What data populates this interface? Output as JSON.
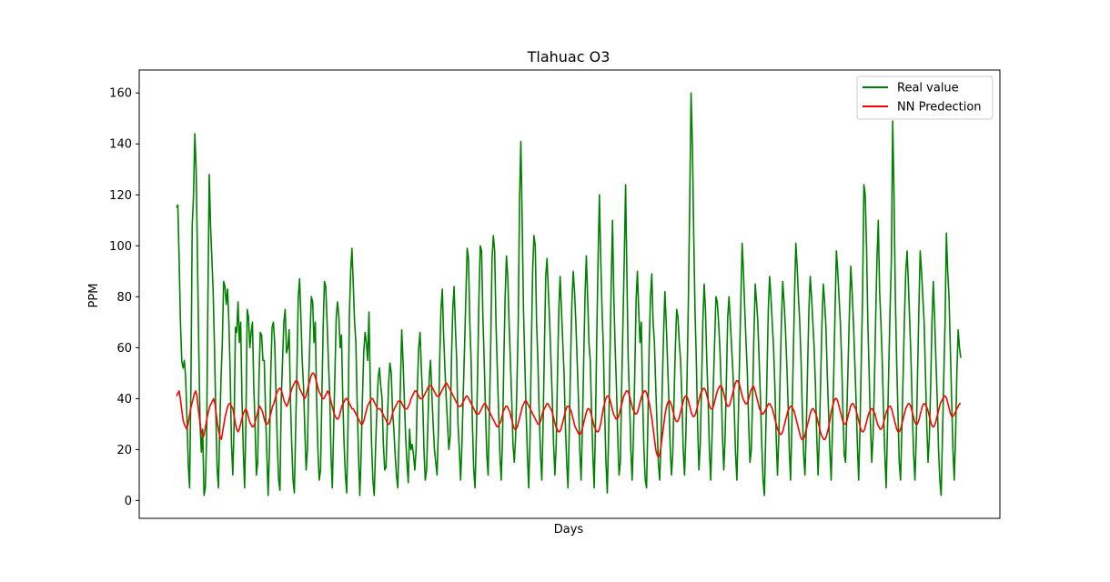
{
  "chart_data": {
    "type": "line",
    "title": "Tlahuac O3",
    "xlabel": "Days",
    "ylabel": "PPM",
    "ylim": [
      -7,
      169
    ],
    "yticks": [
      0,
      20,
      40,
      60,
      80,
      100,
      120,
      140,
      160
    ],
    "xticks": [],
    "grid": false,
    "legend": {
      "placement": "top-right",
      "entries": [
        "Real value",
        "NN Predection"
      ]
    },
    "series": [
      {
        "name": "Real value",
        "color": "#008000",
        "values": [
          115,
          116,
          95,
          70,
          55,
          52,
          55,
          48,
          32,
          14,
          5,
          45,
          108,
          120,
          144,
          130,
          95,
          60,
          30,
          19,
          28,
          2,
          5,
          25,
          80,
          128,
          108,
          95,
          82,
          60,
          35,
          13,
          5,
          28,
          48,
          62,
          86,
          84,
          77,
          83,
          70,
          50,
          22,
          10,
          30,
          68,
          66,
          78,
          62,
          70,
          40,
          20,
          5,
          30,
          75,
          72,
          60,
          66,
          70,
          45,
          30,
          10,
          15,
          48,
          66,
          65,
          55,
          55,
          35,
          18,
          2,
          20,
          50,
          68,
          70,
          62,
          42,
          22,
          8,
          4,
          40,
          55,
          70,
          75,
          58,
          60,
          67,
          40,
          22,
          8,
          3,
          28,
          52,
          80,
          87,
          72,
          55,
          45,
          28,
          12,
          20,
          48,
          65,
          80,
          78,
          62,
          70,
          40,
          20,
          8,
          12,
          40,
          68,
          86,
          84,
          70,
          55,
          42,
          18,
          5,
          28,
          50,
          72,
          78,
          72,
          60,
          65,
          40,
          22,
          10,
          3,
          30,
          72,
          90,
          99,
          85,
          70,
          62,
          38,
          18,
          2,
          18,
          40,
          58,
          66,
          62,
          55,
          74,
          45,
          22,
          8,
          2,
          20,
          35,
          48,
          52,
          45,
          40,
          22,
          12,
          13,
          30,
          46,
          54,
          50,
          35,
          28,
          18,
          10,
          5,
          25,
          45,
          67,
          55,
          40,
          25,
          15,
          7,
          28,
          20,
          22,
          18,
          12,
          20,
          45,
          60,
          66,
          52,
          40,
          20,
          8,
          12,
          30,
          48,
          55,
          42,
          30,
          20,
          15,
          10,
          28,
          55,
          75,
          83,
          65,
          52,
          40,
          30,
          20,
          25,
          55,
          75,
          84,
          68,
          55,
          30,
          20,
          8,
          22,
          42,
          60,
          80,
          99,
          95,
          70,
          55,
          30,
          12,
          5,
          25,
          50,
          80,
          100,
          98,
          72,
          55,
          35,
          18,
          10,
          35,
          62,
          95,
          104,
          98,
          70,
          52,
          35,
          18,
          8,
          25,
          55,
          80,
          96,
          88,
          70,
          55,
          40,
          22,
          15,
          25,
          45,
          70,
          118,
          141,
          110,
          75,
          55,
          35,
          18,
          5,
          25,
          60,
          90,
          104,
          100,
          70,
          55,
          35,
          18,
          8,
          30,
          60,
          88,
          95,
          82,
          70,
          55,
          40,
          22,
          10,
          22,
          50,
          75,
          88,
          75,
          62,
          50,
          30,
          15,
          5,
          28,
          55,
          78,
          90,
          82,
          70,
          55,
          40,
          20,
          8,
          28,
          55,
          80,
          96,
          80,
          62,
          55,
          35,
          18,
          5,
          30,
          65,
          95,
          120,
          95,
          75,
          60,
          35,
          15,
          3,
          25,
          55,
          85,
          110,
          80,
          60,
          45,
          25,
          10,
          15,
          45,
          70,
          95,
          124,
          88,
          55,
          40,
          20,
          8,
          25,
          50,
          78,
          90,
          75,
          62,
          70,
          40,
          20,
          8,
          5,
          30,
          60,
          80,
          89,
          70,
          62,
          45,
          30,
          15,
          8,
          22,
          45,
          65,
          82,
          70,
          55,
          40,
          22,
          10,
          18,
          40,
          60,
          75,
          72,
          62,
          55,
          40,
          20,
          10,
          25,
          50,
          80,
          118,
          160,
          140,
          105,
          75,
          55,
          30,
          12,
          22,
          45,
          70,
          85,
          75,
          55,
          40,
          20,
          8,
          25,
          45,
          62,
          80,
          78,
          70,
          60,
          45,
          25,
          12,
          25,
          48,
          72,
          80,
          70,
          60,
          50,
          35,
          18,
          8,
          30,
          55,
          78,
          101,
          90,
          75,
          62,
          50,
          30,
          15,
          20,
          40,
          65,
          85,
          78,
          70,
          55,
          40,
          22,
          8,
          2,
          25,
          50,
          75,
          88,
          80,
          70,
          60,
          45,
          25,
          10,
          25,
          48,
          70,
          86,
          78,
          68,
          55,
          40,
          20,
          8,
          30,
          55,
          80,
          101,
          92,
          80,
          70,
          55,
          35,
          18,
          10,
          28,
          52,
          75,
          88,
          80,
          70,
          60,
          45,
          25,
          10,
          25,
          48,
          70,
          85,
          78,
          68,
          50,
          35,
          20,
          8,
          28,
          50,
          75,
          98,
          90,
          80,
          70,
          55,
          35,
          18,
          15,
          35,
          55,
          75,
          92,
          82,
          70,
          55,
          40,
          22,
          8,
          28,
          55,
          80,
          124,
          120,
          100,
          70,
          50,
          30,
          15,
          25,
          45,
          72,
          95,
          110,
          82,
          70,
          55,
          35,
          18,
          5,
          28,
          52,
          75,
          95,
          149,
          120,
          80,
          55,
          35,
          15,
          8,
          28,
          50,
          72,
          90,
          98,
          85,
          70,
          55,
          35,
          18,
          8,
          25,
          50,
          75,
          98,
          90,
          80,
          70,
          50,
          30,
          15,
          25,
          45,
          70,
          86,
          72,
          55,
          40,
          20,
          8,
          2,
          25,
          48,
          70,
          105,
          90,
          80,
          60,
          40,
          20,
          8,
          25,
          50,
          67,
          60,
          56
        ]
      },
      {
        "name": "NN Predection",
        "color": "#ff0000",
        "values": [
          41,
          42,
          43,
          40,
          36,
          32,
          30,
          29,
          28,
          30,
          33,
          36,
          38,
          40,
          42,
          43,
          41,
          36,
          32,
          28,
          26,
          25,
          27,
          30,
          33,
          35,
          37,
          38,
          39,
          40,
          38,
          34,
          30,
          27,
          25,
          24,
          27,
          30,
          33,
          35,
          37,
          38,
          38,
          37,
          36,
          33,
          30,
          28,
          27,
          28,
          30,
          32,
          34,
          35,
          36,
          35,
          33,
          31,
          30,
          29,
          29,
          30,
          32,
          34,
          36,
          37,
          36,
          35,
          33,
          31,
          30,
          30,
          31,
          33,
          35,
          37,
          38,
          40,
          42,
          43,
          44,
          44,
          43,
          41,
          39,
          38,
          37,
          38,
          40,
          42,
          44,
          45,
          46,
          47,
          47,
          46,
          44,
          43,
          42,
          41,
          40,
          41,
          43,
          45,
          47,
          49,
          50,
          50,
          49,
          47,
          45,
          43,
          42,
          41,
          40,
          40,
          41,
          42,
          43,
          42,
          40,
          38,
          36,
          34,
          33,
          32,
          32,
          33,
          35,
          37,
          38,
          39,
          40,
          40,
          39,
          38,
          37,
          36,
          36,
          35,
          34,
          33,
          32,
          31,
          30,
          30,
          31,
          33,
          35,
          37,
          38,
          39,
          40,
          40,
          39,
          38,
          37,
          36,
          36,
          36,
          35,
          34,
          33,
          32,
          31,
          30,
          30,
          31,
          33,
          35,
          36,
          37,
          38,
          39,
          39,
          39,
          38,
          37,
          36,
          36,
          36,
          37,
          38,
          40,
          41,
          42,
          43,
          43,
          42,
          41,
          40,
          40,
          40,
          41,
          42,
          43,
          44,
          45,
          45,
          45,
          44,
          43,
          42,
          41,
          41,
          41,
          42,
          43,
          44,
          45,
          46,
          46,
          45,
          44,
          43,
          42,
          41,
          40,
          39,
          38,
          37,
          37,
          37,
          38,
          39,
          40,
          41,
          41,
          40,
          39,
          38,
          37,
          36,
          35,
          34,
          34,
          34,
          35,
          36,
          37,
          38,
          38,
          37,
          36,
          35,
          34,
          33,
          32,
          31,
          30,
          29,
          29,
          30,
          31,
          33,
          35,
          36,
          37,
          37,
          36,
          35,
          33,
          31,
          29,
          28,
          28,
          29,
          31,
          33,
          35,
          37,
          38,
          39,
          39,
          38,
          37,
          36,
          35,
          34,
          33,
          32,
          31,
          30,
          30,
          31,
          33,
          35,
          36,
          37,
          38,
          38,
          37,
          36,
          35,
          33,
          31,
          29,
          28,
          27,
          27,
          28,
          30,
          32,
          34,
          36,
          37,
          37,
          36,
          35,
          33,
          31,
          29,
          28,
          27,
          26,
          26,
          27,
          29,
          31,
          33,
          35,
          36,
          36,
          35,
          33,
          31,
          29,
          28,
          27,
          27,
          28,
          30,
          33,
          36,
          38,
          40,
          41,
          41,
          40,
          38,
          36,
          34,
          33,
          32,
          32,
          33,
          35,
          37,
          39,
          41,
          42,
          43,
          43,
          42,
          40,
          38,
          36,
          35,
          34,
          34,
          35,
          37,
          39,
          41,
          42,
          43,
          43,
          42,
          40,
          38,
          35,
          32,
          28,
          24,
          20,
          18,
          17,
          18,
          21,
          25,
          29,
          33,
          36,
          38,
          39,
          39,
          38,
          36,
          34,
          32,
          31,
          31,
          32,
          34,
          36,
          38,
          40,
          41,
          41,
          40,
          38,
          36,
          34,
          33,
          33,
          34,
          36,
          38,
          40,
          42,
          43,
          44,
          44,
          43,
          41,
          39,
          37,
          36,
          36,
          37,
          39,
          41,
          43,
          44,
          45,
          45,
          44,
          42,
          40,
          38,
          37,
          37,
          38,
          40,
          42,
          44,
          46,
          47,
          47,
          46,
          44,
          42,
          40,
          39,
          38,
          38,
          39,
          41,
          43,
          44,
          45,
          44,
          42,
          40,
          38,
          36,
          35,
          34,
          34,
          35,
          36,
          37,
          38,
          38,
          37,
          36,
          34,
          32,
          30,
          28,
          27,
          26,
          26,
          27,
          29,
          31,
          33,
          35,
          36,
          37,
          37,
          36,
          35,
          33,
          31,
          29,
          27,
          25,
          24,
          24,
          25,
          27,
          29,
          31,
          33,
          35,
          36,
          36,
          35,
          34,
          32,
          30,
          28,
          26,
          25,
          24,
          24,
          25,
          27,
          29,
          32,
          35,
          37,
          39,
          40,
          40,
          39,
          37,
          35,
          33,
          31,
          30,
          30,
          31,
          33,
          35,
          37,
          38,
          38,
          37,
          36,
          34,
          32,
          30,
          28,
          27,
          27,
          28,
          30,
          32,
          34,
          35,
          36,
          36,
          35,
          34,
          32,
          30,
          29,
          28,
          28,
          29,
          31,
          33,
          35,
          36,
          37,
          37,
          36,
          34,
          32,
          30,
          28,
          27,
          27,
          28,
          30,
          32,
          34,
          36,
          37,
          38,
          38,
          37,
          35,
          33,
          31,
          30,
          30,
          31,
          33,
          35,
          37,
          38,
          38,
          37,
          36,
          34,
          32,
          30,
          29,
          29,
          30,
          32,
          34,
          36,
          38,
          39,
          40,
          41,
          41,
          40,
          38,
          36,
          34,
          33,
          33,
          34,
          35,
          36,
          37,
          38,
          38
        ]
      }
    ]
  }
}
